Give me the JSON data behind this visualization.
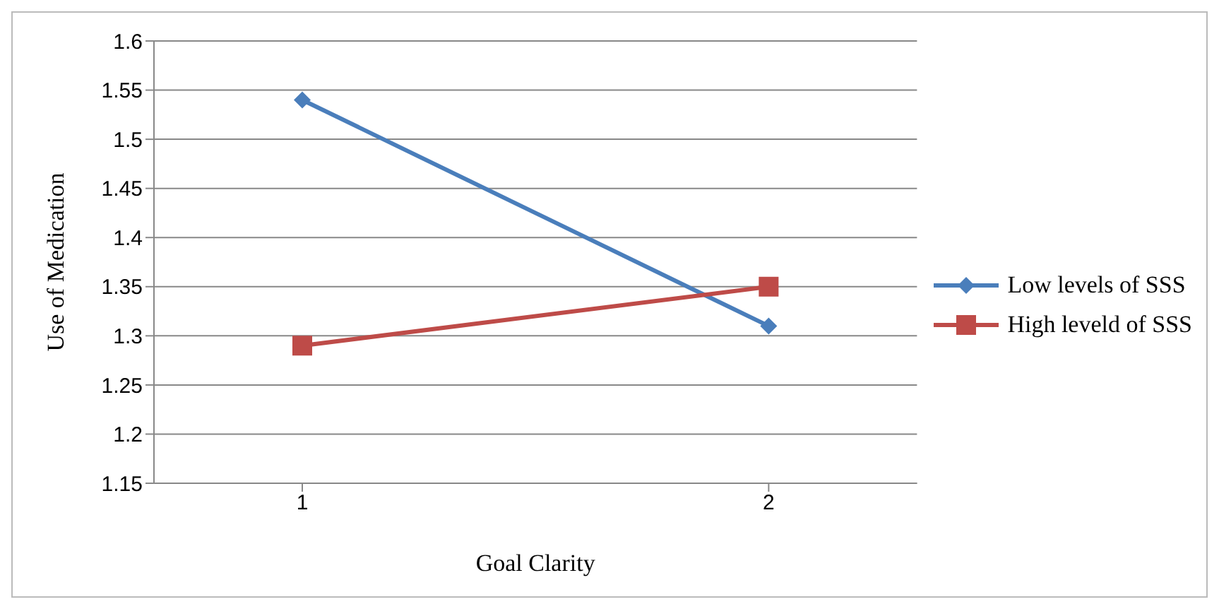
{
  "chart_data": {
    "type": "line",
    "xlabel": "Goal Clarity",
    "ylabel": "Use of Medication",
    "categories": [
      "1",
      "2"
    ],
    "series": [
      {
        "name": "Low levels of SSS",
        "color": "#4a7ebb",
        "values": [
          1.54,
          1.31
        ],
        "marker": "diamond"
      },
      {
        "name": "High leveld of SSS",
        "color": "#be4b48",
        "values": [
          1.29,
          1.35
        ],
        "marker": "square"
      }
    ],
    "ylim": [
      1.15,
      1.6
    ],
    "yticks": [
      1.15,
      1.2,
      1.25,
      1.3,
      1.35,
      1.4,
      1.45,
      1.5,
      1.55,
      1.6
    ],
    "grid": "y",
    "legend": "right"
  }
}
